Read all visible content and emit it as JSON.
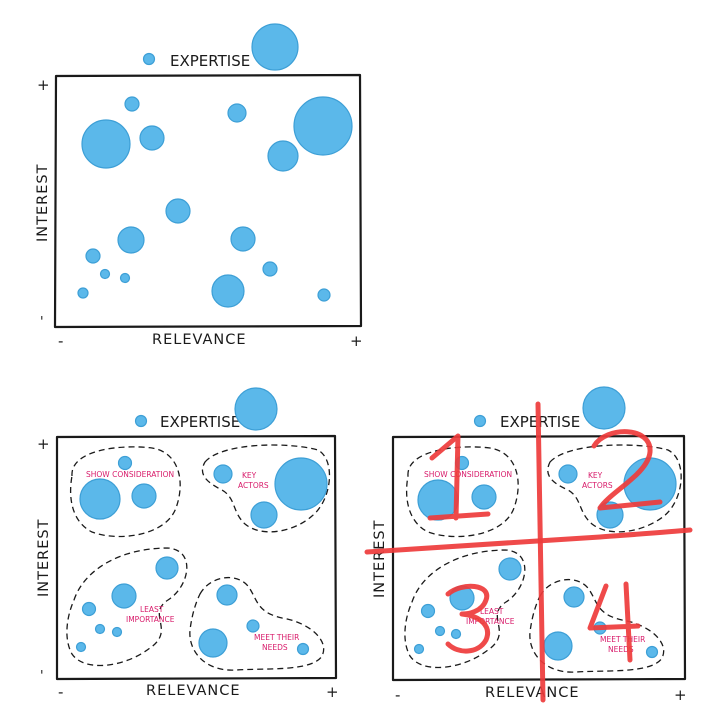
{
  "legend_label": "EXPERTISE",
  "axis": {
    "x_label": "RELEVANCE",
    "y_label": "INTEREST",
    "plus": "+",
    "minus": "-",
    "y_minus": "'"
  },
  "groups": {
    "show_consideration": "SHOW CONSIDERATION",
    "key_actors_1": "KEY",
    "key_actors_2": "ACTORS",
    "least_importance_1": "LEAST",
    "least_importance_2": "IMPORTANCE",
    "meet_their_needs_1": "MEET THEIR",
    "meet_their_needs_2": "NEEDS"
  },
  "quadrant_numbers": [
    "1",
    "2",
    "3",
    "4"
  ],
  "colors": {
    "bubble": "#5bb8ea",
    "annotation": "#d81b6a",
    "overlay": "#ee3b3b",
    "ink": "#1a1a1a"
  }
}
